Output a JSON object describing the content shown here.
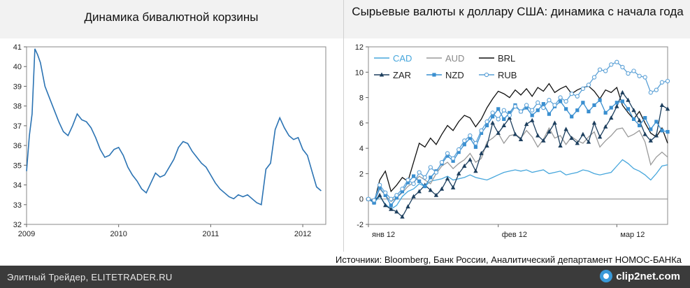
{
  "left_title": "Динамика бивалютной корзины",
  "right_title": "Сырьевые валюты к доллару США: динамика с начала года",
  "source": "Источники: Bloomberg, Банк России, Аналитический департамент НОМОС-БАНКа",
  "footer": "Элитный Трейдер, ELITETRADER.RU",
  "watermark": "clip2net.com",
  "colors": {
    "basket": "#2b73b3",
    "CAD": "#46a6dc",
    "AUD": "#9a9a9a",
    "BRL": "#111111",
    "ZAR": "#1d3f5e",
    "NZD": "#3a8fd0",
    "RUB": "#5aa0d6"
  },
  "chart_data": [
    {
      "type": "line",
      "title": "Динамика бивалютной корзины",
      "ylim": [
        32,
        41
      ],
      "yticks": [
        32,
        33,
        34,
        35,
        36,
        37,
        38,
        39,
        40,
        41
      ],
      "xlim": [
        2009.0,
        2012.25
      ],
      "xticks": [
        {
          "label": "2009",
          "value": 2009.0
        },
        {
          "label": "2010",
          "value": 2010.0
        },
        {
          "label": "2011",
          "value": 2011.0
        },
        {
          "label": "2012",
          "value": 2012.0
        }
      ],
      "series": [
        {
          "x": [
            2009.0,
            2009.03,
            2009.06,
            2009.09,
            2009.12,
            2009.15,
            2009.2,
            2009.25,
            2009.3,
            2009.35,
            2009.4,
            2009.45,
            2009.5,
            2009.55,
            2009.6,
            2009.65,
            2009.7,
            2009.75,
            2009.8,
            2009.85,
            2009.9,
            2009.95,
            2010.0,
            2010.05,
            2010.1,
            2010.15,
            2010.2,
            2010.25,
            2010.3,
            2010.35,
            2010.4,
            2010.45,
            2010.5,
            2010.55,
            2010.6,
            2010.65,
            2010.7,
            2010.75,
            2010.8,
            2010.85,
            2010.9,
            2010.95,
            2011.0,
            2011.05,
            2011.1,
            2011.15,
            2011.2,
            2011.25,
            2011.3,
            2011.35,
            2011.4,
            2011.45,
            2011.5,
            2011.55,
            2011.6,
            2011.65,
            2011.7,
            2011.75,
            2011.8,
            2011.85,
            2011.9,
            2011.95,
            2012.0,
            2012.05,
            2012.1,
            2012.15,
            2012.2
          ],
          "y": [
            34.7,
            36.5,
            37.6,
            40.9,
            40.6,
            40.2,
            39.0,
            38.4,
            37.8,
            37.2,
            36.7,
            36.5,
            37.0,
            37.6,
            37.3,
            37.2,
            36.9,
            36.4,
            35.8,
            35.4,
            35.5,
            35.8,
            35.9,
            35.5,
            34.9,
            34.5,
            34.2,
            33.8,
            33.6,
            34.1,
            34.6,
            34.4,
            34.5,
            34.9,
            35.3,
            35.9,
            36.2,
            36.1,
            35.7,
            35.4,
            35.1,
            34.9,
            34.5,
            34.1,
            33.8,
            33.6,
            33.4,
            33.3,
            33.5,
            33.4,
            33.5,
            33.3,
            33.1,
            33.0,
            34.8,
            35.1,
            36.8,
            37.4,
            36.9,
            36.5,
            36.3,
            36.4,
            35.8,
            35.5,
            34.7,
            33.9,
            33.7
          ]
        }
      ]
    },
    {
      "type": "line",
      "title": "Сырьевые валюты к доллару США: динамика с начала года",
      "ylim": [
        -2,
        12
      ],
      "yticks": [
        -2,
        0,
        2,
        4,
        6,
        8,
        10,
        12
      ],
      "xlim": [
        0,
        53
      ],
      "xticks": [
        {
          "label": "янв 12",
          "value": 0
        },
        {
          "label": "фев 12",
          "value": 23
        },
        {
          "label": "мар 12",
          "value": 44
        }
      ],
      "legend": "top-left",
      "series": [
        {
          "name": "CAD",
          "marker": "none",
          "values": [
            0.0,
            -0.3,
            0.2,
            -0.4,
            -0.8,
            -0.5,
            0.2,
            0.6,
            0.8,
            1.2,
            1.0,
            1.4,
            1.5,
            1.6,
            1.8,
            1.5,
            1.6,
            1.7,
            1.9,
            1.7,
            1.6,
            1.5,
            1.7,
            1.9,
            2.1,
            2.2,
            2.3,
            2.2,
            2.3,
            2.1,
            2.2,
            2.3,
            2.0,
            2.1,
            2.2,
            1.9,
            2.0,
            2.1,
            2.3,
            2.2,
            2.0,
            1.9,
            2.0,
            2.1,
            2.6,
            3.1,
            2.8,
            2.4,
            2.2,
            1.9,
            1.5,
            2.0,
            2.6,
            2.7
          ]
        },
        {
          "name": "AUD",
          "marker": "none",
          "values": [
            0.0,
            -0.2,
            0.8,
            0.3,
            -0.2,
            0.1,
            0.5,
            1.0,
            1.3,
            1.8,
            1.5,
            1.2,
            2.0,
            2.6,
            2.9,
            2.4,
            2.8,
            3.1,
            3.6,
            2.9,
            3.2,
            4.5,
            4.8,
            5.2,
            4.4,
            5.0,
            5.1,
            4.8,
            5.4,
            4.9,
            4.1,
            4.7,
            5.6,
            4.8,
            5.0,
            4.3,
            4.9,
            4.6,
            4.4,
            4.9,
            5.3,
            4.1,
            4.6,
            5.0,
            5.5,
            5.6,
            4.9,
            5.1,
            5.4,
            4.5,
            2.7,
            3.3,
            3.7,
            3.3
          ]
        },
        {
          "name": "BRL",
          "marker": "none",
          "values": [
            0.0,
            -0.3,
            1.5,
            2.2,
            0.6,
            1.1,
            1.7,
            1.4,
            2.9,
            4.4,
            4.1,
            4.8,
            4.3,
            5.1,
            5.8,
            5.4,
            6.1,
            6.6,
            6.4,
            5.7,
            6.3,
            7.2,
            7.9,
            8.5,
            8.3,
            8.0,
            8.6,
            8.2,
            8.7,
            8.1,
            8.8,
            8.5,
            9.1,
            8.4,
            8.7,
            8.9,
            8.3,
            8.6,
            8.8,
            8.9,
            8.5,
            7.9,
            8.6,
            8.4,
            8.8,
            7.4,
            6.8,
            6.3,
            6.9,
            6.0,
            5.2,
            4.9,
            5.6,
            4.4
          ]
        },
        {
          "name": "ZAR",
          "marker": "triangle",
          "values": [
            0.0,
            -0.2,
            0.3,
            -0.5,
            -0.8,
            -1.0,
            -1.4,
            -0.6,
            0.2,
            0.6,
            1.1,
            0.7,
            0.3,
            0.8,
            1.6,
            0.9,
            2.0,
            2.6,
            3.1,
            2.2,
            3.6,
            4.2,
            6.0,
            5.2,
            5.8,
            6.4,
            5.1,
            4.7,
            5.9,
            6.2,
            5.0,
            4.6,
            5.3,
            6.0,
            4.2,
            5.5,
            4.8,
            4.4,
            5.1,
            4.5,
            6.0,
            4.9,
            5.7,
            6.4,
            7.3,
            8.4,
            7.8,
            7.0,
            6.2,
            5.1,
            4.6,
            5.0,
            7.4,
            7.1
          ]
        },
        {
          "name": "NZD",
          "marker": "square",
          "values": [
            0.0,
            -0.3,
            0.9,
            0.3,
            -0.5,
            0.1,
            0.6,
            1.3,
            1.8,
            1.4,
            1.0,
            1.7,
            2.2,
            2.8,
            3.4,
            3.0,
            3.7,
            4.3,
            4.8,
            4.1,
            5.2,
            5.8,
            6.5,
            7.1,
            6.3,
            6.8,
            7.4,
            6.9,
            7.2,
            6.6,
            7.0,
            7.5,
            6.7,
            7.3,
            7.7,
            7.1,
            6.5,
            7.0,
            7.6,
            6.9,
            7.4,
            7.8,
            6.8,
            7.2,
            7.6,
            7.7,
            7.1,
            6.3,
            5.8,
            6.4,
            5.5,
            6.1,
            5.4,
            5.3
          ]
        },
        {
          "name": "RUB",
          "marker": "circle",
          "values": [
            0.0,
            -0.1,
            1.1,
            0.5,
            0.0,
            0.3,
            0.8,
            1.5,
            1.2,
            2.1,
            1.7,
            2.5,
            2.1,
            2.9,
            3.6,
            3.2,
            3.9,
            4.6,
            5.0,
            4.4,
            5.4,
            6.1,
            6.8,
            6.3,
            7.0,
            6.6,
            7.3,
            6.9,
            7.4,
            7.0,
            7.6,
            7.2,
            7.8,
            7.4,
            8.0,
            7.7,
            8.3,
            8.1,
            8.7,
            9.0,
            9.6,
            10.2,
            10.1,
            10.6,
            10.8,
            10.4,
            9.9,
            10.1,
            9.7,
            9.6,
            8.4,
            8.6,
            9.2,
            9.3
          ]
        }
      ]
    }
  ]
}
